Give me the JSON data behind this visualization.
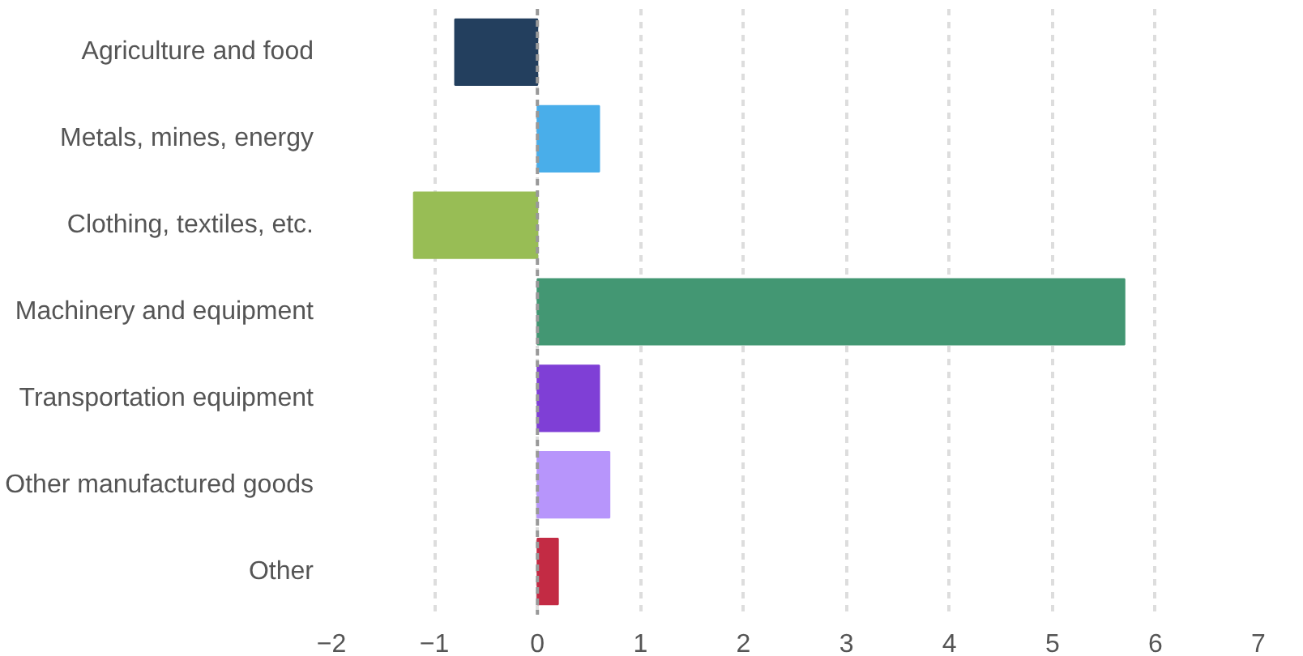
{
  "chart_data": {
    "type": "bar",
    "orientation": "horizontal",
    "categories": [
      "Agriculture and food",
      "Metals, mines, energy",
      "Clothing, textiles, etc.",
      "Machinery and equipment",
      "Transportation equipment",
      "Other manufactured goods",
      "Other"
    ],
    "values": [
      -0.8,
      0.6,
      -1.2,
      5.7,
      0.6,
      0.7,
      0.2
    ],
    "colors": [
      "#233f5e",
      "#49aeea",
      "#98bd55",
      "#439773",
      "#7f3fd6",
      "#b795fb",
      "#c32b44"
    ],
    "xlim": [
      -2,
      7
    ],
    "xticks": [
      -2,
      -1,
      0,
      1,
      2,
      3,
      4,
      5,
      6,
      7
    ],
    "grid": "x",
    "ref_lines": [
      {
        "axis": "x",
        "value": 0,
        "color": "#999999",
        "line_style": "dashed"
      }
    ]
  }
}
